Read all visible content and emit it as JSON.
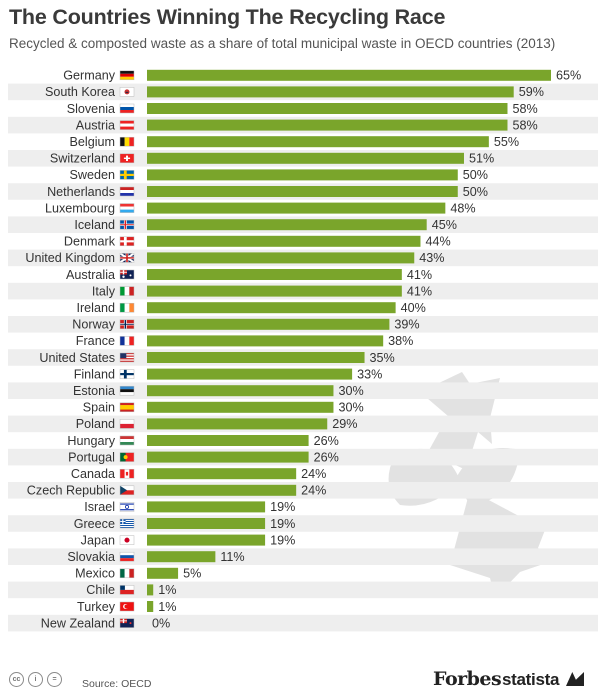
{
  "header": {
    "title": "The Countries Winning The Recycling Race",
    "subtitle": "Recycled & composted waste as a share of total municipal waste in OECD countries (2013)"
  },
  "footer": {
    "source": "Source: OECD",
    "brand_forbes": "Forbes",
    "brand_statista": "statista",
    "license_icons": [
      "cc-icon",
      "attribution-icon",
      "equals-icon"
    ]
  },
  "colors": {
    "bar": "#7aa52b",
    "stripe": "#eeeeee",
    "background_icon": "#e2e2e2"
  },
  "chart_data": {
    "type": "bar",
    "orientation": "horizontal",
    "value_suffix": "%",
    "categories": [
      "Germany",
      "South Korea",
      "Slovenia",
      "Austria",
      "Belgium",
      "Switzerland",
      "Sweden",
      "Netherlands",
      "Luxembourg",
      "Iceland",
      "Denmark",
      "United Kingdom",
      "Australia",
      "Italy",
      "Ireland",
      "Norway",
      "France",
      "United States",
      "Finland",
      "Estonia",
      "Spain",
      "Poland",
      "Hungary",
      "Portugal",
      "Canada",
      "Czech Republic",
      "Israel",
      "Greece",
      "Japan",
      "Slovakia",
      "Mexico",
      "Chile",
      "Turkey",
      "New Zealand"
    ],
    "values": [
      65,
      59,
      58,
      58,
      55,
      51,
      50,
      50,
      48,
      45,
      44,
      43,
      41,
      41,
      40,
      39,
      38,
      35,
      33,
      30,
      30,
      29,
      26,
      26,
      24,
      24,
      19,
      19,
      19,
      11,
      5,
      1,
      1,
      0
    ],
    "flags": [
      "germany-flag-icon",
      "south-korea-flag-icon",
      "slovenia-flag-icon",
      "austria-flag-icon",
      "belgium-flag-icon",
      "switzerland-flag-icon",
      "sweden-flag-icon",
      "netherlands-flag-icon",
      "luxembourg-flag-icon",
      "iceland-flag-icon",
      "denmark-flag-icon",
      "united-kingdom-flag-icon",
      "australia-flag-icon",
      "italy-flag-icon",
      "ireland-flag-icon",
      "norway-flag-icon",
      "france-flag-icon",
      "united-states-flag-icon",
      "finland-flag-icon",
      "estonia-flag-icon",
      "spain-flag-icon",
      "poland-flag-icon",
      "hungary-flag-icon",
      "portugal-flag-icon",
      "canada-flag-icon",
      "czech-republic-flag-icon",
      "israel-flag-icon",
      "greece-flag-icon",
      "japan-flag-icon",
      "slovakia-flag-icon",
      "mexico-flag-icon",
      "chile-flag-icon",
      "turkey-flag-icon",
      "new-zealand-flag-icon"
    ],
    "xlim": [
      0,
      65
    ],
    "grid": false,
    "legend": "none"
  }
}
